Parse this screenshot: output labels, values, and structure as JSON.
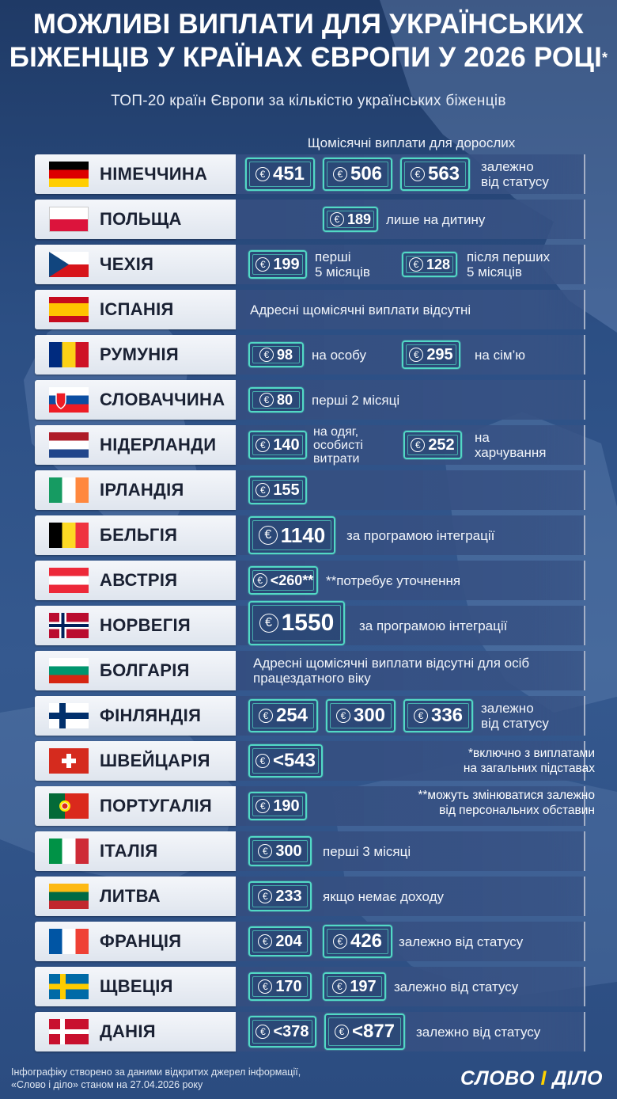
{
  "title_line1": "Можливі виплати для українських",
  "title_line2": "біженців у країнах Європи у 2026 році",
  "title_mark": "*",
  "subtitle": "ТОП-20 країн Європи за кількістю українських біженців",
  "column_header": "Щомісячні виплати для дорослих",
  "currency_symbol": "€",
  "rows": [
    {
      "country": "НІМЕЧЧИНА",
      "flag": "germany-flag-icon",
      "amounts": [
        "451",
        "506",
        "563"
      ],
      "text": [
        "залежно",
        "від статусу"
      ]
    },
    {
      "country": "ПОЛЬЩА",
      "flag": "poland-flag-icon",
      "amounts": [
        "189"
      ],
      "text": [
        "лише на дитину"
      ]
    },
    {
      "country": "ЧЕХІЯ",
      "flag": "czechia-flag-icon",
      "amounts": [
        "199",
        "128"
      ],
      "text": [
        "перші",
        "5 місяців",
        "після перших",
        "5 місяців"
      ]
    },
    {
      "country": "ІСПАНІЯ",
      "flag": "spain-flag-icon",
      "amounts": [],
      "text": [
        "Адресні щомісячні виплати відсутні"
      ]
    },
    {
      "country": "РУМУНІЯ",
      "flag": "romania-flag-icon",
      "amounts": [
        "98",
        "295"
      ],
      "text": [
        "на особу",
        "на сім’ю"
      ]
    },
    {
      "country": "СЛОВАЧЧИНА",
      "flag": "slovakia-flag-icon",
      "amounts": [
        "80"
      ],
      "text": [
        "перші 2 місяці"
      ]
    },
    {
      "country": "НІДЕРЛАНДИ",
      "flag": "netherlands-flag-icon",
      "amounts": [
        "140",
        "252"
      ],
      "text": [
        "на одяг,",
        "особисті",
        "витрати",
        "на",
        "харчування"
      ]
    },
    {
      "country": "ІРЛАНДІЯ",
      "flag": "ireland-flag-icon",
      "amounts": [
        "155"
      ],
      "text": []
    },
    {
      "country": "БЕЛЬГІЯ",
      "flag": "belgium-flag-icon",
      "amounts": [
        "1140"
      ],
      "text": [
        "за програмою інтеграції"
      ]
    },
    {
      "country": "АВСТРІЯ",
      "flag": "austria-flag-icon",
      "amounts": [
        "<260**"
      ],
      "text": [
        "**потребує уточнення"
      ]
    },
    {
      "country": "НОРВЕГІЯ",
      "flag": "norway-flag-icon",
      "amounts": [
        "1550"
      ],
      "text": [
        "за програмою інтеграції"
      ]
    },
    {
      "country": "БОЛГАРІЯ",
      "flag": "bulgaria-flag-icon",
      "amounts": [],
      "text": [
        "Адресні щомісячні виплати відсутні для осіб",
        "працездатного віку"
      ]
    },
    {
      "country": "ФІНЛЯНДІЯ",
      "flag": "finland-flag-icon",
      "amounts": [
        "254",
        "300",
        "336"
      ],
      "text": [
        "залежно",
        "від статусу"
      ]
    },
    {
      "country": "ШВЕЙЦАРІЯ",
      "flag": "switzerland-flag-icon",
      "amounts": [
        "<543"
      ],
      "text": [
        "*включно з виплатами",
        "на загальних підставах"
      ]
    },
    {
      "country": "ПОРТУГАЛІЯ",
      "flag": "portugal-flag-icon",
      "amounts": [
        "190"
      ],
      "text": [
        "**можуть змінюватися залежно",
        "від персональних обставин"
      ]
    },
    {
      "country": "ІТАЛІЯ",
      "flag": "italy-flag-icon",
      "amounts": [
        "300"
      ],
      "text": [
        "перші 3 місяці"
      ]
    },
    {
      "country": "ЛИТВА",
      "flag": "lithuania-flag-icon",
      "amounts": [
        "233"
      ],
      "text": [
        "якщо немає доходу"
      ]
    },
    {
      "country": "ФРАНЦІЯ",
      "flag": "france-flag-icon",
      "amounts": [
        "204",
        "426"
      ],
      "text": [
        "залежно від статусу"
      ]
    },
    {
      "country": "ЩВЕЦІЯ",
      "flag": "sweden-flag-icon",
      "amounts": [
        "170",
        "197"
      ],
      "text": [
        "залежно від статусу"
      ]
    },
    {
      "country": "ДАНІЯ",
      "flag": "denmark-flag-icon",
      "amounts": [
        "<378",
        "<877"
      ],
      "text": [
        "залежно від статусу"
      ]
    }
  ],
  "footer_line1": "Інфографіку створено за даними відкритих джерел інформації,",
  "footer_line2": "«Слово і діло» станом на 27.04.2026 року",
  "logo_part1": "СЛОВО ",
  "logo_part2": "І",
  "logo_part3": " ДІЛО",
  "colors": {
    "accent": "#52d9c5",
    "panel": "#344e80",
    "background": "#2c4f84"
  }
}
